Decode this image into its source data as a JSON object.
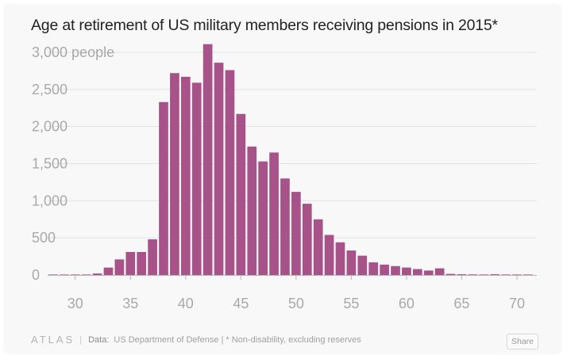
{
  "title": "Age at retirement of US military members receiving pensions in 2015*",
  "footer": {
    "logo": "ATLAS",
    "separator": "|",
    "data_label": "Data:",
    "source": "US Department of Defense | * Non-disability, excluding reserves",
    "share_label": "Share"
  },
  "colors": {
    "bar": "#a8528a",
    "grid": "#e2e2e2",
    "axis": "#b5b5b5",
    "tick_text": "#a9a9a9"
  },
  "chart_data": {
    "type": "bar",
    "x": [
      28,
      29,
      30,
      31,
      32,
      33,
      34,
      35,
      36,
      37,
      38,
      39,
      40,
      41,
      42,
      43,
      44,
      45,
      46,
      47,
      48,
      49,
      50,
      51,
      52,
      53,
      54,
      55,
      56,
      57,
      58,
      59,
      60,
      61,
      62,
      63,
      64,
      65,
      66,
      67,
      68,
      69,
      70,
      71
    ],
    "values": [
      2,
      3,
      3,
      5,
      20,
      100,
      210,
      310,
      310,
      480,
      2330,
      2720,
      2670,
      2590,
      3110,
      2860,
      2760,
      2170,
      1730,
      1530,
      1650,
      1300,
      1120,
      960,
      750,
      540,
      440,
      330,
      260,
      170,
      140,
      120,
      100,
      80,
      60,
      90,
      15,
      10,
      8,
      6,
      10,
      5,
      4,
      3
    ],
    "title": "Age at retirement of US military members receiving pensions in 2015*",
    "xlabel": "",
    "ylabel": "",
    "xticks": [
      30,
      35,
      40,
      45,
      50,
      55,
      60,
      65,
      70
    ],
    "xtick_labels": [
      "30",
      "35",
      "40",
      "45",
      "50",
      "55",
      "60",
      "65",
      "70"
    ],
    "yticks": [
      0,
      500,
      1000,
      1500,
      2000,
      2500,
      3000
    ],
    "ytick_labels": [
      "0",
      "500",
      "1,000",
      "1,500",
      "2,000",
      "2,500",
      "3,000 people"
    ],
    "ylim": [
      0,
      3200
    ],
    "grid": true,
    "legend": "none"
  }
}
